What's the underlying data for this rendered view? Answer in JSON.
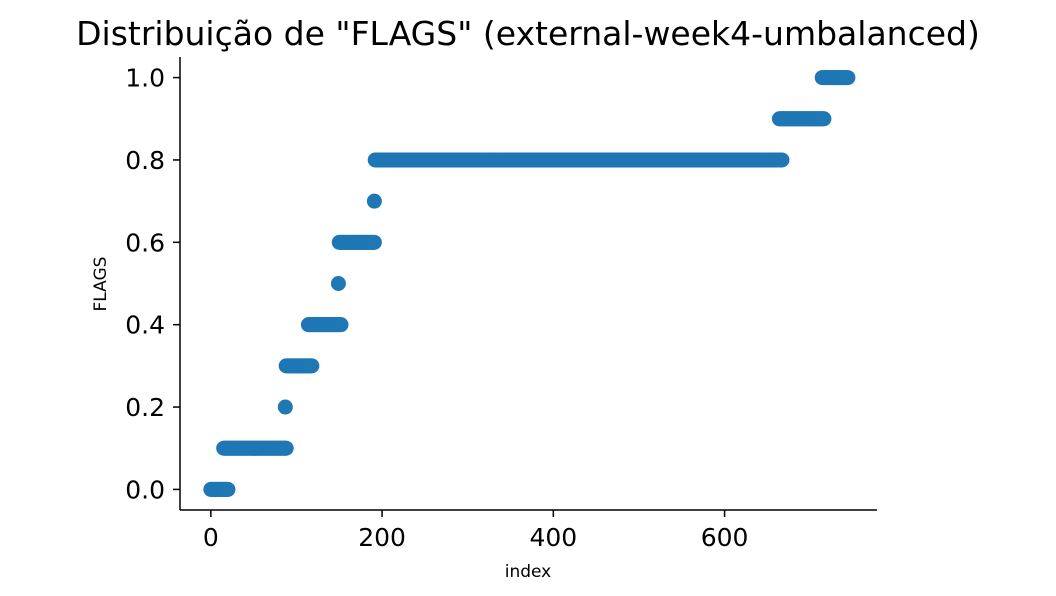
{
  "chart_data": {
    "type": "scatter",
    "title": "Distribuição de \"FLAGS\" (external-week4-umbalanced)",
    "xlabel": "index",
    "ylabel": "FLAGS",
    "xlim": [
      -36,
      778
    ],
    "ylim": [
      -0.05,
      1.05
    ],
    "xticks": [
      0,
      200,
      400,
      600
    ],
    "xtick_labels": [
      "0",
      "200",
      "400",
      "600"
    ],
    "yticks": [
      0.0,
      0.2,
      0.4,
      0.6,
      0.8,
      1.0
    ],
    "ytick_labels": [
      "0.0",
      "0.2",
      "0.4",
      "0.6",
      "0.8",
      "1.0"
    ],
    "grid": false,
    "color": "#1f77b4",
    "segments": [
      {
        "y": 0.0,
        "x_start": 0,
        "x_end": 20
      },
      {
        "y": 0.1,
        "x_start": 15,
        "x_end": 88
      },
      {
        "y": 0.2,
        "x_start": 87,
        "x_end": 87
      },
      {
        "y": 0.3,
        "x_start": 88,
        "x_end": 118
      },
      {
        "y": 0.4,
        "x_start": 114,
        "x_end": 152
      },
      {
        "y": 0.5,
        "x_start": 149,
        "x_end": 149
      },
      {
        "y": 0.6,
        "x_start": 150,
        "x_end": 191
      },
      {
        "y": 0.7,
        "x_start": 191,
        "x_end": 191
      },
      {
        "y": 0.8,
        "x_start": 192,
        "x_end": 667
      },
      {
        "y": 0.9,
        "x_start": 664,
        "x_end": 716
      },
      {
        "y": 1.0,
        "x_start": 714,
        "x_end": 744
      }
    ]
  }
}
